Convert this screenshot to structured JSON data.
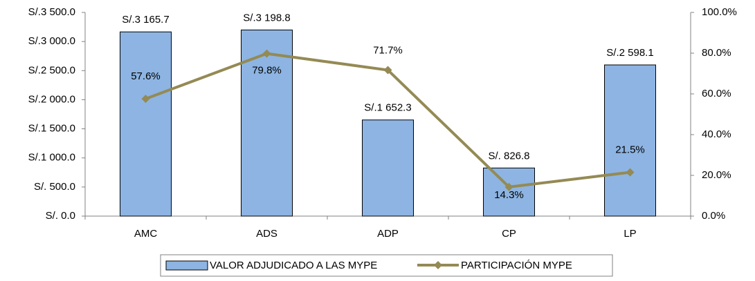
{
  "chart_data": {
    "type": "bar-line",
    "categories": [
      "AMC",
      "ADS",
      "ADP",
      "CP",
      "LP"
    ],
    "series": [
      {
        "name": "VALOR ADJUDICADO A LAS MYPE",
        "type": "bar",
        "color": "#8db4e2",
        "values": [
          3165.7,
          3198.8,
          1652.3,
          826.8,
          2598.1
        ],
        "value_labels": [
          "S/.3 165.7",
          "S/.3 198.8",
          "S/.1 652.3",
          "S/. 826.8",
          "S/.2 598.1"
        ]
      },
      {
        "name": "PARTICIPACIÓN MYPE",
        "type": "line",
        "axis": "y2",
        "color": "#948a54",
        "values": [
          57.6,
          79.8,
          71.7,
          14.3,
          21.5
        ],
        "value_labels": [
          "57.6%",
          "79.8%",
          "71.7%",
          "14.3%",
          "21.5%"
        ]
      }
    ],
    "ylim": [
      0,
      3500
    ],
    "yticks": [
      {
        "value": 0,
        "label": "S/. 0.0"
      },
      {
        "value": 500,
        "label": "S/. 500.0"
      },
      {
        "value": 1000,
        "label": "S/.1 000.0"
      },
      {
        "value": 1500,
        "label": "S/.1 500.0"
      },
      {
        "value": 2000,
        "label": "S/.2 000.0"
      },
      {
        "value": 2500,
        "label": "S/.2 500.0"
      },
      {
        "value": 3000,
        "label": "S/.3 000.0"
      },
      {
        "value": 3500,
        "label": "S/.3 500.0"
      }
    ],
    "y2lim": [
      0,
      100
    ],
    "y2ticks": [
      {
        "value": 0,
        "label": "0.0%"
      },
      {
        "value": 20,
        "label": "20.0%"
      },
      {
        "value": 40,
        "label": "40.0%"
      },
      {
        "value": 60,
        "label": "60.0%"
      },
      {
        "value": 80,
        "label": "80.0%"
      },
      {
        "value": 100,
        "label": "100.0%"
      }
    ],
    "grid": false,
    "legend": "bottom"
  }
}
